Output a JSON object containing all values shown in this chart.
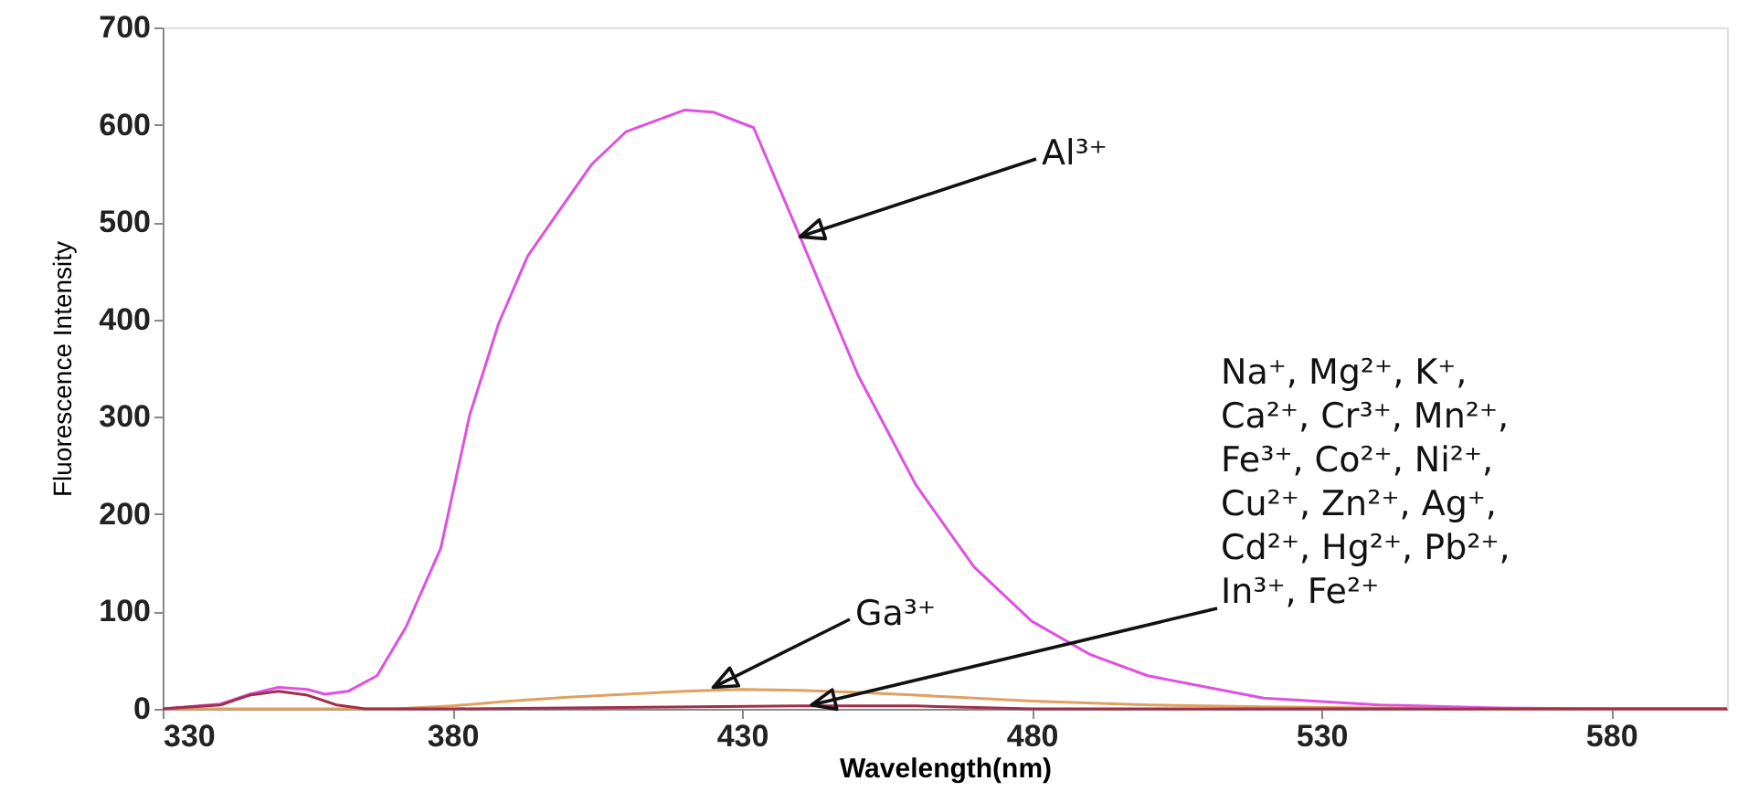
{
  "chart_data": {
    "type": "line",
    "xlabel": "Wavelength(nm)",
    "ylabel": "Fluorescence Intensity",
    "xlim": [
      330,
      600
    ],
    "xticks": [
      330,
      380,
      430,
      480,
      530,
      580
    ],
    "ylim": [
      0,
      700
    ],
    "yticks": [
      0,
      100,
      200,
      300,
      400,
      500,
      600,
      700
    ],
    "grid": false,
    "legend": false,
    "annotations": [
      {
        "text": "Al³⁺",
        "x": 440,
        "y": 485
      },
      {
        "text": "Ga³⁺",
        "x": 425,
        "y": 22
      },
      {
        "text": "Na⁺, Mg²⁺, K⁺, Ca²⁺, Cr³⁺, Mn²⁺, Fe³⁺, Co²⁺, Ni²⁺, Cu²⁺, Zn²⁺, Ag⁺, Cd²⁺, Hg²⁺, Pb²⁺, In³⁺, Fe²⁺",
        "x": 442,
        "y": 4
      }
    ],
    "series": [
      {
        "color": "#e050e0",
        "x": [
          330,
          340,
          345,
          350,
          355,
          358,
          362,
          367,
          372,
          378,
          383,
          388,
          393,
          398,
          404,
          410,
          420,
          425,
          432,
          440,
          450,
          460,
          470,
          480,
          490,
          500,
          520,
          540,
          560,
          580,
          600
        ],
        "values": [
          0,
          5,
          15,
          22,
          20,
          15,
          18,
          34,
          84,
          165,
          302,
          396,
          465,
          508,
          559,
          593,
          615,
          613,
          597,
          485,
          343,
          230,
          146,
          90,
          56,
          34,
          11,
          4,
          1,
          0,
          0
        ]
      },
      {
        "color": "#e0a060",
        "x": [
          330,
          370,
          380,
          390,
          400,
          410,
          420,
          430,
          440,
          450,
          460,
          470,
          480,
          500,
          520,
          540,
          560,
          600
        ],
        "values": [
          0,
          0,
          3,
          8,
          12,
          15,
          18,
          20,
          19,
          17,
          14,
          11,
          8,
          4,
          2,
          1,
          0,
          0
        ]
      },
      {
        "color": "#a0304a",
        "x": [
          330,
          340,
          345,
          350,
          355,
          360,
          365,
          380,
          440,
          460,
          480,
          600
        ],
        "values": [
          0,
          4,
          14,
          18,
          14,
          4,
          0,
          0,
          3,
          3,
          0,
          0
        ]
      }
    ]
  }
}
